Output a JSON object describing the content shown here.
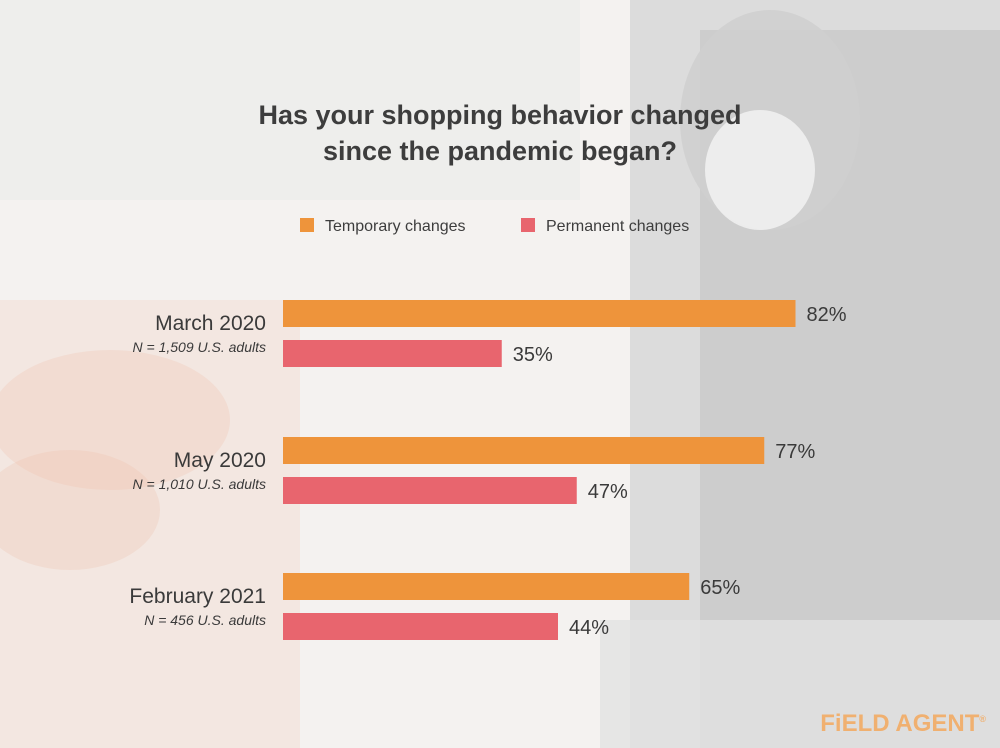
{
  "chart_data": {
    "type": "bar",
    "orientation": "horizontal",
    "title": [
      "Has your shopping behavior changed",
      "since the pandemic began?"
    ],
    "categories": [
      "March 2020",
      "May 2020",
      "February 2021"
    ],
    "category_notes": [
      "N = 1,509 U.S. adults",
      "N = 1,010 U.S. adults",
      "N = 456 U.S. adults"
    ],
    "series": [
      {
        "name": "Temporary changes",
        "color": "#ee943b",
        "values": [
          82,
          77,
          65
        ],
        "labels": [
          "82%",
          "77%",
          "65%"
        ]
      },
      {
        "name": "Permanent changes",
        "color": "#e8656e",
        "values": [
          35,
          47,
          44
        ],
        "labels": [
          "35%",
          "47%",
          "44%"
        ]
      }
    ],
    "xlim": [
      0,
      100
    ],
    "grid": false,
    "legend_position": "top-center"
  },
  "brand": {
    "logo_text": "FiELD AGENT",
    "logo_mark": "®",
    "logo_color": "#f0b070"
  }
}
